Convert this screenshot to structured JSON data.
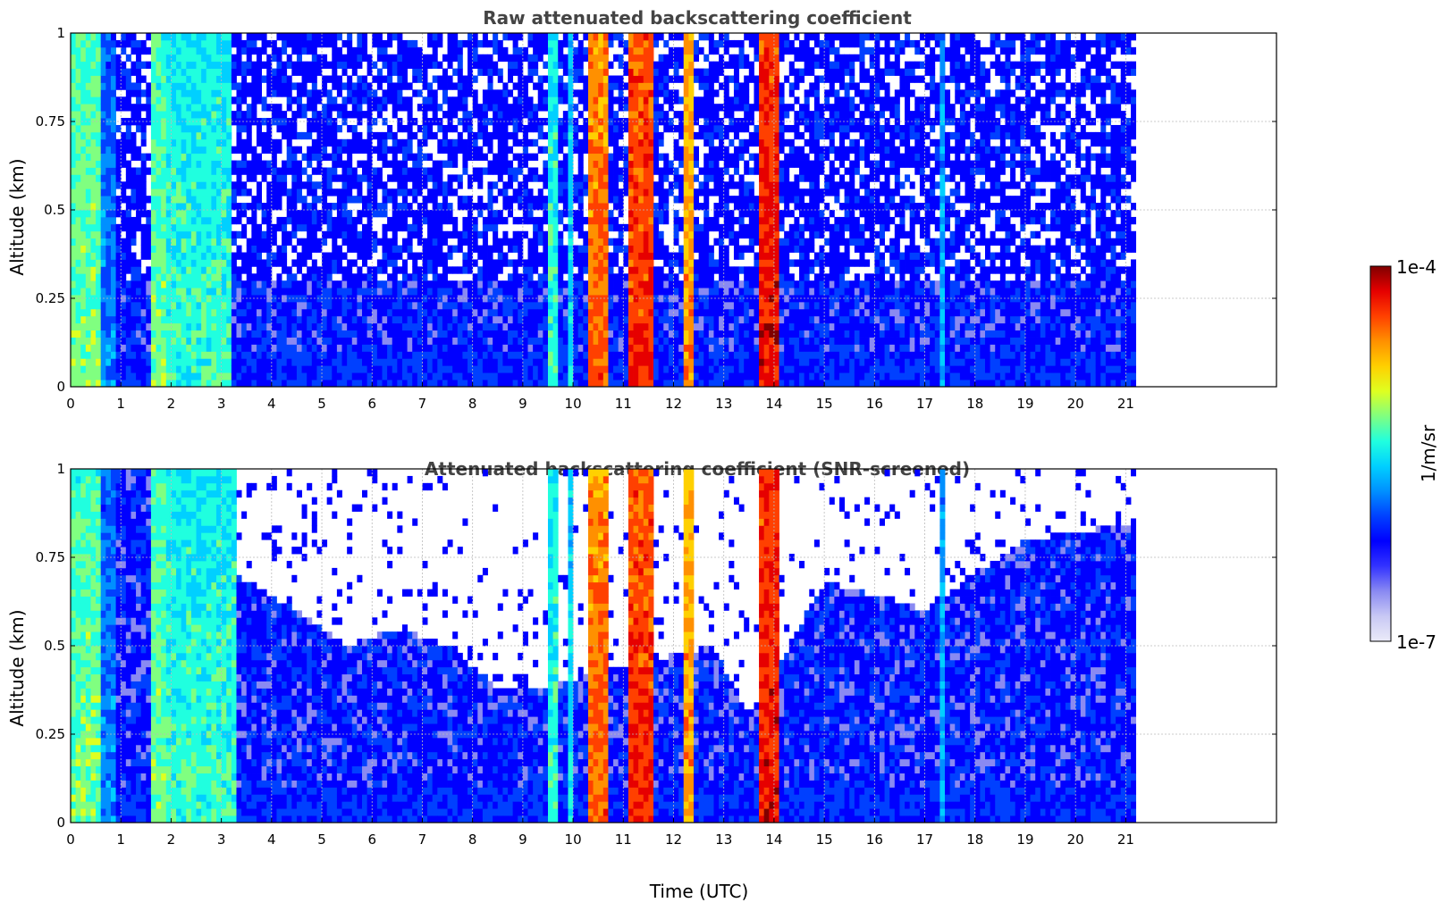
{
  "figure": {
    "colorbar": {
      "max_label": "1e-4",
      "min_label": "1e-7",
      "unit_label": "1/m/sr",
      "colormap": [
        "#ebebf8",
        "#c8c8f4",
        "#8a8af2",
        "#3333ff",
        "#0000ff",
        "#0040ff",
        "#0090ff",
        "#00d0ff",
        "#20ffdf",
        "#80ff80",
        "#dfff20",
        "#ffd000",
        "#ff9000",
        "#ff4000",
        "#e60000",
        "#800000"
      ]
    }
  },
  "chart_data": [
    {
      "type": "heatmap",
      "title": "Raw attenuated backscattering coefficient",
      "xlabel": "",
      "ylabel": "Altitude (km)",
      "xlim": [
        0,
        24
      ],
      "ylim": [
        0,
        1
      ],
      "data_extent_x": [
        0,
        21.2
      ],
      "x_ticks": [
        "0",
        "1",
        "2",
        "3",
        "4",
        "5",
        "6",
        "7",
        "8",
        "9",
        "10",
        "11",
        "12",
        "13",
        "14",
        "15",
        "16",
        "17",
        "18",
        "19",
        "20",
        "21"
      ],
      "y_ticks": [
        "0",
        "0.25",
        "0.5",
        "0.75",
        "1"
      ],
      "grid": true,
      "value_scale": "log",
      "value_range": [
        1e-07,
        0.0001
      ],
      "bands": [
        {
          "x": [
            0.0,
            0.6
          ],
          "level": 0.6
        },
        {
          "x": [
            0.6,
            0.9
          ],
          "level": 0.4
        },
        {
          "x": [
            1.6,
            1.9
          ],
          "level": 0.6
        },
        {
          "x": [
            1.9,
            2.6
          ],
          "level": 0.55
        },
        {
          "x": [
            2.6,
            3.2
          ],
          "level": 0.55
        },
        {
          "x": [
            9.5,
            9.7
          ],
          "level": 0.55
        },
        {
          "x": [
            9.9,
            10.0
          ],
          "level": 0.5
        },
        {
          "x": [
            10.3,
            10.7
          ],
          "level": 0.85
        },
        {
          "x": [
            11.1,
            11.6
          ],
          "level": 0.9
        },
        {
          "x": [
            12.2,
            12.4
          ],
          "level": 0.8
        },
        {
          "x": [
            13.7,
            14.1
          ],
          "level": 0.93
        },
        {
          "x": [
            17.3,
            17.4
          ],
          "level": 0.45
        }
      ]
    },
    {
      "type": "heatmap",
      "title": "Attenuated backscattering coefficient (SNR-screened)",
      "xlabel": "Time (UTC)",
      "ylabel": "Altitude (km)",
      "xlim": [
        0,
        24
      ],
      "ylim": [
        0,
        1
      ],
      "data_extent_x": [
        0,
        21.2
      ],
      "x_ticks": [
        "0",
        "1",
        "2",
        "3",
        "4",
        "5",
        "6",
        "7",
        "8",
        "9",
        "10",
        "11",
        "12",
        "13",
        "14",
        "15",
        "16",
        "17",
        "18",
        "19",
        "20",
        "21"
      ],
      "y_ticks": [
        "0",
        "0.25",
        "0.5",
        "0.75",
        "1"
      ],
      "grid": true,
      "value_scale": "log",
      "value_range": [
        1e-07,
        0.0001
      ],
      "bands": [
        {
          "x": [
            0.0,
            0.6
          ],
          "level": 0.6
        },
        {
          "x": [
            0.6,
            0.9
          ],
          "level": 0.4
        },
        {
          "x": [
            1.6,
            1.9
          ],
          "level": 0.6
        },
        {
          "x": [
            1.9,
            2.6
          ],
          "level": 0.55
        },
        {
          "x": [
            2.6,
            3.3
          ],
          "level": 0.55
        },
        {
          "x": [
            9.5,
            9.7
          ],
          "level": 0.55
        },
        {
          "x": [
            9.9,
            10.0
          ],
          "level": 0.5
        },
        {
          "x": [
            10.3,
            10.7
          ],
          "level": 0.85
        },
        {
          "x": [
            11.1,
            11.6
          ],
          "level": 0.9
        },
        {
          "x": [
            12.2,
            12.4
          ],
          "level": 0.8
        },
        {
          "x": [
            13.7,
            14.1
          ],
          "level": 0.93
        },
        {
          "x": [
            17.3,
            17.4
          ],
          "level": 0.45
        }
      ],
      "clear_sky_top_km": [
        [
          3.3,
          0.7
        ],
        [
          4.5,
          0.6
        ],
        [
          5.5,
          0.5
        ],
        [
          6.5,
          0.55
        ],
        [
          7.5,
          0.5
        ],
        [
          8.5,
          0.38
        ],
        [
          9.2,
          0.38
        ],
        [
          12.8,
          0.5
        ],
        [
          13.5,
          0.3
        ],
        [
          15,
          0.68
        ],
        [
          17,
          0.6
        ],
        [
          18,
          0.7
        ],
        [
          19,
          0.8
        ],
        [
          20,
          0.82
        ],
        [
          21.2,
          0.85
        ]
      ]
    }
  ]
}
